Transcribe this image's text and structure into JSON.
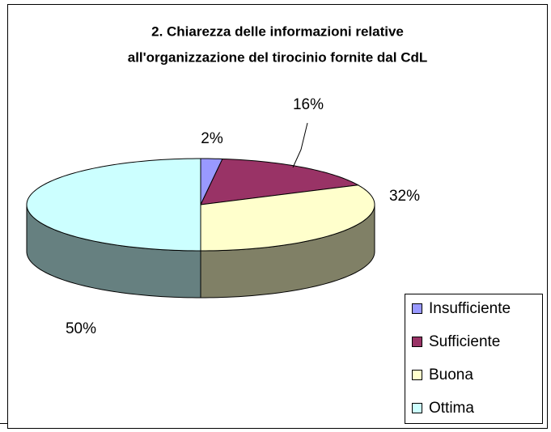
{
  "chart_data": {
    "type": "pie3d",
    "title": [
      "2. Chiarezza delle informazioni relative",
      "all'organizzazione del tirocinio fornite dal CdL"
    ],
    "categories": [
      "Insufficiente",
      "Sufficiente",
      "Buona",
      "Ottima"
    ],
    "values": [
      2,
      16,
      32,
      50
    ],
    "value_labels": [
      "2%",
      "16%",
      "32%",
      "50%"
    ],
    "colors": [
      "#9999ff",
      "#993366",
      "#ffffcc",
      "#ccffff"
    ],
    "legend": "bottom-right"
  }
}
